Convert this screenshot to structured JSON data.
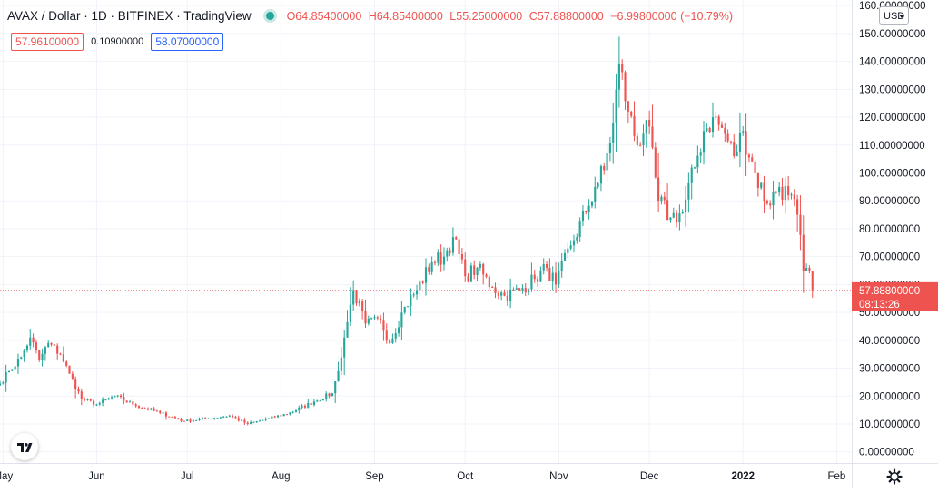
{
  "legend": {
    "title": "AVAX / Dollar · 1D · BITFINEX · TradingView",
    "open": "O64.85400000",
    "high": "H64.85400000",
    "low": "L55.25000000",
    "close": "C57.88800000",
    "change": "−6.99800000 (−10.79%)"
  },
  "price_boxes": {
    "sell": "57.96100000",
    "spread": "0.10900000",
    "buy": "58.07000000"
  },
  "currency": "USD",
  "last_price": {
    "value": "57.88800000",
    "countdown": "08:13:26"
  },
  "icons": {
    "live": "live-status-dot",
    "logo": "tradingview-logo-icon",
    "settings": "gear-icon",
    "currency_caret": "chevron-down-icon"
  },
  "colors": {
    "up": "#26a69a",
    "down": "#ef5350",
    "grid": "#f0f3fa",
    "text": "#131722",
    "price_line": "#ef5350"
  },
  "chart_data": {
    "type": "candlestick",
    "y_tick_labels": [
      "0.00000000",
      "10.00000000",
      "20.00000000",
      "30.00000000",
      "40.00000000",
      "50.00000000",
      "60.00000000",
      "70.00000000",
      "80.00000000",
      "90.00000000",
      "100.00000000",
      "110.00000000",
      "120.00000000",
      "130.00000000",
      "140.00000000",
      "150.00000000",
      "160.00000000"
    ],
    "ylim": [
      -4,
      162
    ],
    "x_ticks": [
      {
        "label": "May",
        "date": "2021-05-01"
      },
      {
        "label": "Jun",
        "date": "2021-06-01"
      },
      {
        "label": "Jul",
        "date": "2021-07-01"
      },
      {
        "label": "Aug",
        "date": "2021-08-01"
      },
      {
        "label": "Sep",
        "date": "2021-09-01"
      },
      {
        "label": "Oct",
        "date": "2021-10-01"
      },
      {
        "label": "Nov",
        "date": "2021-11-01"
      },
      {
        "label": "Dec",
        "date": "2021-12-01"
      },
      {
        "label": "2022",
        "date": "2022-01-01"
      },
      {
        "label": "Feb",
        "date": "2022-02-01"
      }
    ],
    "x_range": [
      "2021-04-30",
      "2022-02-06"
    ],
    "grid": true,
    "close_anchors": [
      [
        "2021-04-30",
        24.5
      ],
      [
        "2021-05-03",
        29
      ],
      [
        "2021-05-07",
        34
      ],
      [
        "2021-05-10",
        41
      ],
      [
        "2021-05-13",
        33
      ],
      [
        "2021-05-16",
        39
      ],
      [
        "2021-05-20",
        35
      ],
      [
        "2021-05-23",
        28
      ],
      [
        "2021-05-27",
        19
      ],
      [
        "2021-06-01",
        17
      ],
      [
        "2021-06-07",
        20
      ],
      [
        "2021-06-13",
        17
      ],
      [
        "2021-06-22",
        14
      ],
      [
        "2021-06-30",
        11
      ],
      [
        "2021-07-08",
        12
      ],
      [
        "2021-07-15",
        13
      ],
      [
        "2021-07-21",
        10
      ],
      [
        "2021-07-28",
        12
      ],
      [
        "2021-08-04",
        14
      ],
      [
        "2021-08-12",
        18
      ],
      [
        "2021-08-18",
        21
      ],
      [
        "2021-08-20",
        29
      ],
      [
        "2021-08-22",
        41
      ],
      [
        "2021-08-25",
        58
      ],
      [
        "2021-08-29",
        46
      ],
      [
        "2021-09-03",
        47
      ],
      [
        "2021-09-06",
        39
      ],
      [
        "2021-09-11",
        52
      ],
      [
        "2021-09-15",
        58
      ],
      [
        "2021-09-20",
        68
      ],
      [
        "2021-09-24",
        70
      ],
      [
        "2021-09-27",
        77
      ],
      [
        "2021-10-01",
        63
      ],
      [
        "2021-10-05",
        66
      ],
      [
        "2021-10-10",
        59
      ],
      [
        "2021-10-14",
        56
      ],
      [
        "2021-10-19",
        58
      ],
      [
        "2021-10-24",
        62
      ],
      [
        "2021-10-28",
        66
      ],
      [
        "2021-10-31",
        60
      ],
      [
        "2021-11-05",
        74
      ],
      [
        "2021-11-10",
        86
      ],
      [
        "2021-11-13",
        95
      ],
      [
        "2021-11-16",
        101
      ],
      [
        "2021-11-19",
        118
      ],
      [
        "2021-11-21",
        139
      ],
      [
        "2021-11-24",
        122
      ],
      [
        "2021-11-27",
        110
      ],
      [
        "2021-11-30",
        119
      ],
      [
        "2021-12-04",
        90
      ],
      [
        "2021-12-08",
        84
      ],
      [
        "2021-12-12",
        86
      ],
      [
        "2021-12-16",
        102
      ],
      [
        "2021-12-19",
        115
      ],
      [
        "2021-12-22",
        120
      ],
      [
        "2021-12-26",
        114
      ],
      [
        "2021-12-29",
        106
      ],
      [
        "2022-01-01",
        115
      ],
      [
        "2022-01-05",
        100
      ],
      [
        "2022-01-09",
        89
      ],
      [
        "2022-01-13",
        95
      ],
      [
        "2022-01-16",
        92
      ],
      [
        "2022-01-19",
        85
      ],
      [
        "2022-01-21",
        65
      ],
      [
        "2022-01-23",
        64.85
      ],
      [
        "2022-01-24",
        57.888
      ]
    ],
    "last_candle": {
      "open": 64.854,
      "high": 64.854,
      "low": 55.25,
      "close": 57.888
    }
  }
}
